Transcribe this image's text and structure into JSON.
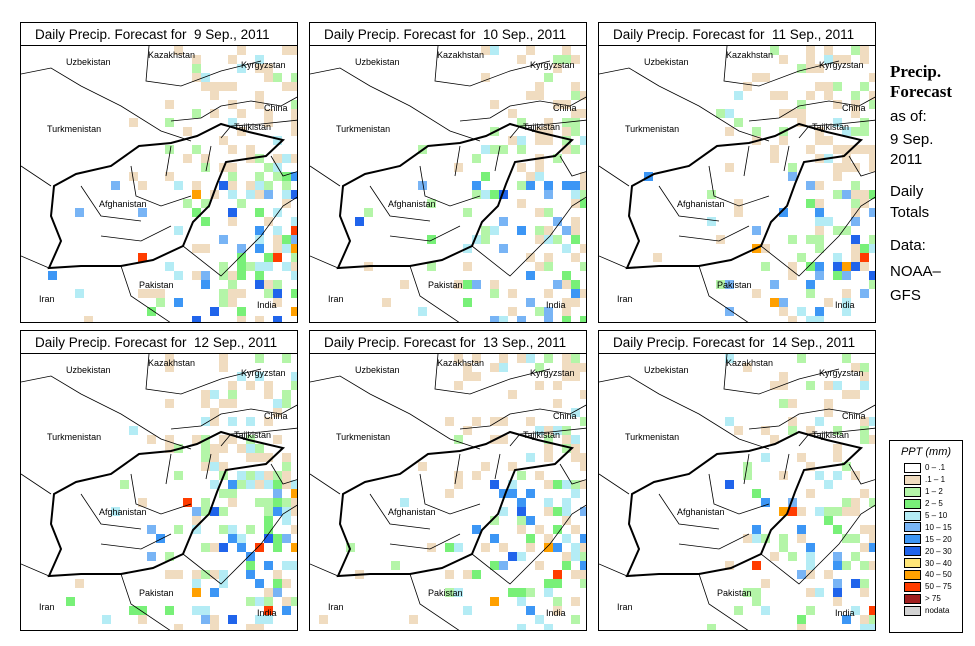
{
  "panels": [
    {
      "title": "Daily Precip. Forecast for  9 Sep., 2011",
      "density": 0.55
    },
    {
      "title": "Daily Precip. Forecast for  10 Sep., 2011",
      "density": 0.45
    },
    {
      "title": "Daily Precip. Forecast for  11 Sep., 2011",
      "density": 0.45
    },
    {
      "title": "Daily Precip. Forecast for  12 Sep., 2011",
      "density": 0.55
    },
    {
      "title": "Daily Precip. Forecast for  13 Sep., 2011",
      "density": 0.5
    },
    {
      "title": "Daily Precip. Forecast for  14 Sep., 2011",
      "density": 0.4
    }
  ],
  "countries": {
    "uzbekistan": "Uzbekistan",
    "kazakhstan": "Kazakhstan",
    "kyrgyzstan": "Kyrgyzstan",
    "china": "China",
    "tajikistan": "Tajikistan",
    "turkmenistan": "Turkmenistan",
    "afghanistan": "Afghanistan",
    "pakistan": "Pakistan",
    "iran": "Iran",
    "india": "India"
  },
  "side": {
    "title1": "Precip.",
    "title2": "Forecast",
    "asof": "as of:",
    "date1": "9 Sep.",
    "date2": "2011",
    "daily": "Daily",
    "totals": "Totals",
    "data": "Data:",
    "source1": "NOAA–",
    "source2": "GFS"
  },
  "legend": {
    "title": "PPT (mm)",
    "items": [
      {
        "label": "0 – .1",
        "color": "#ffffff"
      },
      {
        "label": ".1 – 1",
        "color": "#f0dcc0"
      },
      {
        "label": "1 – 2",
        "color": "#b4f5a8"
      },
      {
        "label": "2 – 5",
        "color": "#78f078"
      },
      {
        "label": "5 – 10",
        "color": "#b4ecf5"
      },
      {
        "label": "10 – 15",
        "color": "#78b4f5"
      },
      {
        "label": "15 – 20",
        "color": "#3c96f5"
      },
      {
        "label": "20 – 30",
        "color": "#2064eb"
      },
      {
        "label": "30 – 40",
        "color": "#ffe678"
      },
      {
        "label": "40 – 50",
        "color": "#ffa000"
      },
      {
        "label": "50 – 75",
        "color": "#ff3c00"
      },
      {
        "label": "> 75",
        "color": "#a01e1e"
      },
      {
        "label": "nodata",
        "color": "#d2d2d2"
      }
    ]
  }
}
